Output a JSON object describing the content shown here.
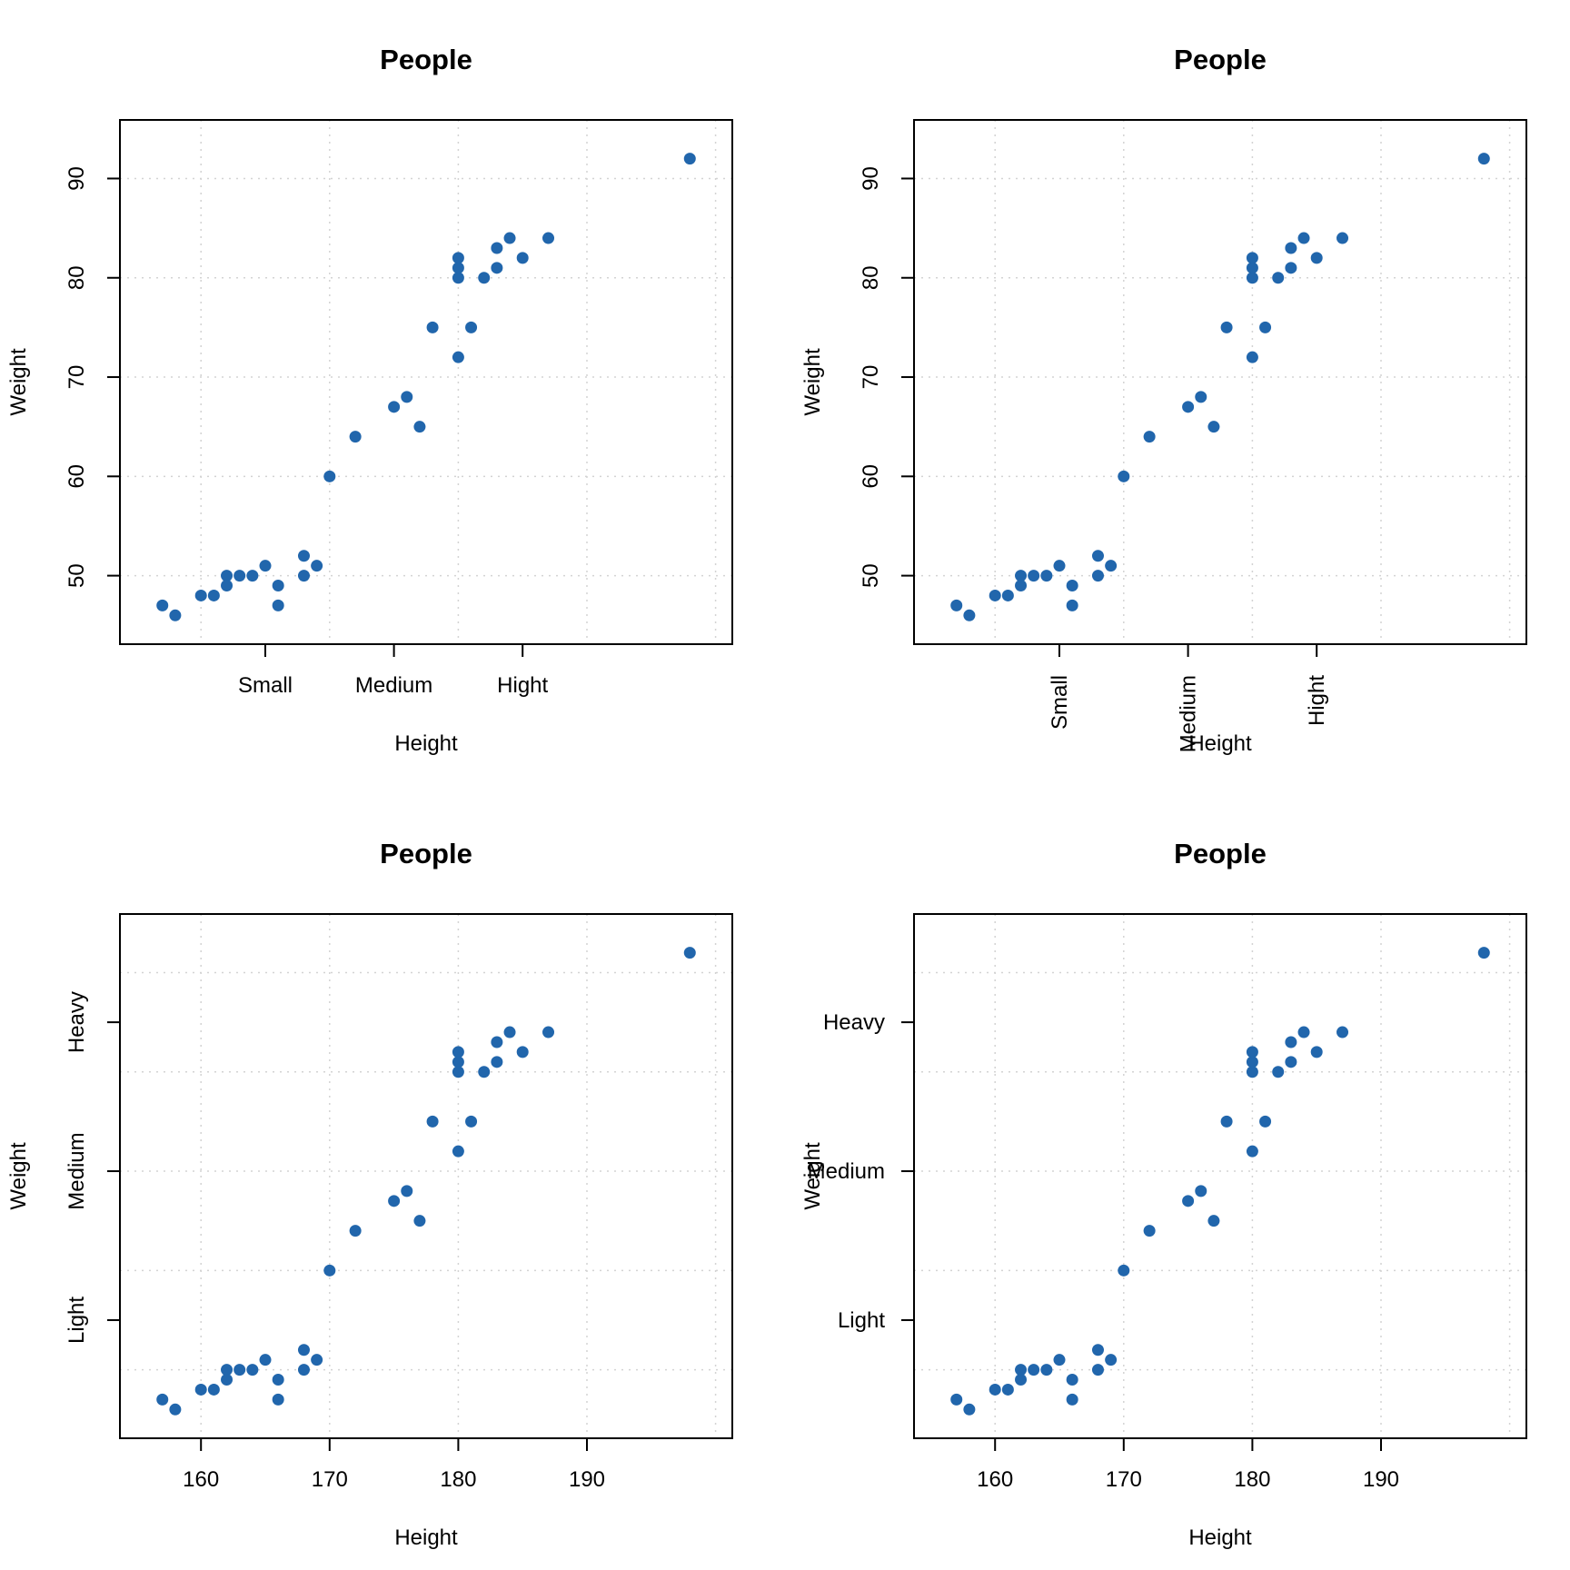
{
  "colors": {
    "points": "#2166ac",
    "grid": "#d3d3d3"
  },
  "chart_data": [
    {
      "type": "scatter",
      "title": "People",
      "xlabel": "Height",
      "ylabel": "Weight",
      "x_tick_labels": [
        {
          "value": 165,
          "label": "Small"
        },
        {
          "value": 175,
          "label": "Medium"
        },
        {
          "value": 185,
          "label": "Hight"
        }
      ],
      "x_tick_label_orientation": "horizontal",
      "y_tick_labels": [
        {
          "value": 50,
          "label": "50"
        },
        {
          "value": 60,
          "label": "60"
        },
        {
          "value": 70,
          "label": "70"
        },
        {
          "value": 80,
          "label": "80"
        },
        {
          "value": 90,
          "label": "90"
        }
      ],
      "y_tick_label_orientation": "vertical",
      "grid": true,
      "xlim": [
        153.7,
        201.3
      ],
      "ylim": [
        43.1,
        95.9
      ],
      "x": [
        157,
        158,
        160,
        161,
        162,
        162,
        163,
        164,
        165,
        166,
        166,
        168,
        168,
        169,
        170,
        172,
        175,
        176,
        177,
        178,
        180,
        180,
        180,
        180,
        181,
        182,
        183,
        183,
        184,
        185,
        187,
        198
      ],
      "y": [
        47,
        46,
        48,
        48,
        50,
        49,
        50,
        50,
        51,
        49,
        47,
        50,
        52,
        51,
        60,
        64,
        67,
        68,
        65,
        75,
        72,
        80,
        81,
        82,
        75,
        80,
        81,
        83,
        84,
        82,
        84,
        92
      ]
    },
    {
      "type": "scatter",
      "title": "People",
      "xlabel": "Height",
      "ylabel": "Weight",
      "x_tick_labels": [
        {
          "value": 165,
          "label": "Small"
        },
        {
          "value": 175,
          "label": "Medium"
        },
        {
          "value": 185,
          "label": "Hight"
        }
      ],
      "x_tick_label_orientation": "vertical",
      "y_tick_labels": [
        {
          "value": 50,
          "label": "50"
        },
        {
          "value": 60,
          "label": "60"
        },
        {
          "value": 70,
          "label": "70"
        },
        {
          "value": 80,
          "label": "80"
        },
        {
          "value": 90,
          "label": "90"
        }
      ],
      "y_tick_label_orientation": "vertical",
      "grid": true,
      "xlim": [
        153.7,
        201.3
      ],
      "ylim": [
        43.1,
        95.9
      ],
      "x": [
        157,
        158,
        160,
        161,
        162,
        162,
        163,
        164,
        165,
        166,
        166,
        168,
        168,
        169,
        170,
        172,
        175,
        176,
        177,
        178,
        180,
        180,
        180,
        180,
        181,
        182,
        183,
        183,
        184,
        185,
        187,
        198
      ],
      "y": [
        47,
        46,
        48,
        48,
        50,
        49,
        50,
        50,
        51,
        49,
        47,
        50,
        52,
        51,
        60,
        64,
        67,
        68,
        65,
        75,
        72,
        80,
        81,
        82,
        75,
        80,
        81,
        83,
        84,
        82,
        84,
        92
      ]
    },
    {
      "type": "scatter",
      "title": "People",
      "xlabel": "Height",
      "ylabel": "Weight",
      "x_tick_labels": [
        {
          "value": 160,
          "label": "160"
        },
        {
          "value": 170,
          "label": "170"
        },
        {
          "value": 180,
          "label": "180"
        },
        {
          "value": 190,
          "label": "190"
        }
      ],
      "x_tick_label_orientation": "horizontal",
      "y_tick_labels": [
        {
          "value": 55,
          "label": "Light"
        },
        {
          "value": 70,
          "label": "Medium"
        },
        {
          "value": 85,
          "label": "Heavy"
        }
      ],
      "y_tick_label_orientation": "vertical",
      "grid": true,
      "xlim": [
        153.7,
        201.3
      ],
      "ylim": [
        43.1,
        95.9
      ],
      "x": [
        157,
        158,
        160,
        161,
        162,
        162,
        163,
        164,
        165,
        166,
        166,
        168,
        168,
        169,
        170,
        172,
        175,
        176,
        177,
        178,
        180,
        180,
        180,
        180,
        181,
        182,
        183,
        183,
        184,
        185,
        187,
        198
      ],
      "y": [
        47,
        46,
        48,
        48,
        50,
        49,
        50,
        50,
        51,
        49,
        47,
        50,
        52,
        51,
        60,
        64,
        67,
        68,
        65,
        75,
        72,
        80,
        81,
        82,
        75,
        80,
        81,
        83,
        84,
        82,
        84,
        92
      ]
    },
    {
      "type": "scatter",
      "title": "People",
      "xlabel": "Height",
      "ylabel": "Weight",
      "x_tick_labels": [
        {
          "value": 160,
          "label": "160"
        },
        {
          "value": 170,
          "label": "170"
        },
        {
          "value": 180,
          "label": "180"
        },
        {
          "value": 190,
          "label": "190"
        }
      ],
      "x_tick_label_orientation": "horizontal",
      "y_tick_labels": [
        {
          "value": 55,
          "label": "Light"
        },
        {
          "value": 70,
          "label": "Medium"
        },
        {
          "value": 85,
          "label": "Heavy"
        }
      ],
      "y_tick_label_orientation": "horizontal",
      "grid": true,
      "xlim": [
        153.7,
        201.3
      ],
      "ylim": [
        43.1,
        95.9
      ],
      "x": [
        157,
        158,
        160,
        161,
        162,
        162,
        163,
        164,
        165,
        166,
        166,
        168,
        168,
        169,
        170,
        172,
        175,
        176,
        177,
        178,
        180,
        180,
        180,
        180,
        181,
        182,
        183,
        183,
        184,
        185,
        187,
        198
      ],
      "y": [
        47,
        46,
        48,
        48,
        50,
        49,
        50,
        50,
        51,
        49,
        47,
        50,
        52,
        51,
        60,
        64,
        67,
        68,
        65,
        75,
        72,
        80,
        81,
        82,
        75,
        80,
        81,
        83,
        84,
        82,
        84,
        92
      ]
    }
  ]
}
